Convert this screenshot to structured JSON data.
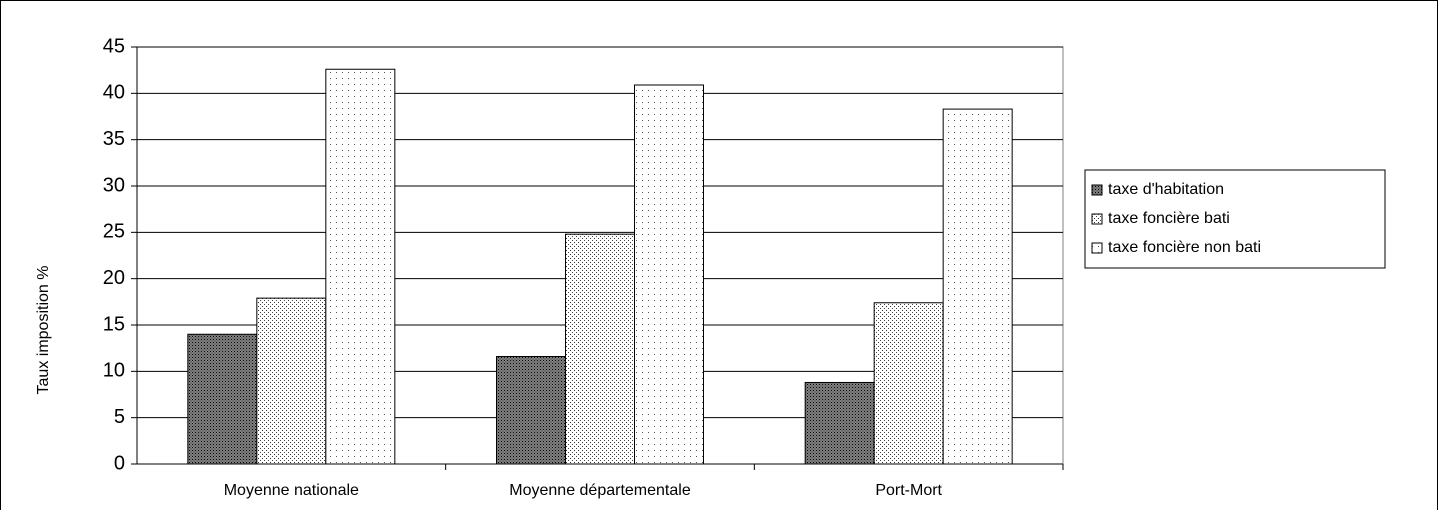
{
  "chart_data": {
    "type": "bar",
    "y_axis_label": "Taux imposition %",
    "categories": [
      "Moyenne nationale",
      "Moyenne départementale",
      "Port-Mort"
    ],
    "series": [
      {
        "name": "taxe d'habitation",
        "color": "#808080",
        "values": [
          14.0,
          11.6,
          8.8
        ]
      },
      {
        "name": "taxe foncière bati",
        "color": "#a8a8a8",
        "values": [
          17.9,
          24.8,
          17.4
        ]
      },
      {
        "name": "taxe foncière  non bati",
        "color": "#d0d0d0",
        "values": [
          42.6,
          40.9,
          38.3
        ]
      }
    ],
    "ylim": [
      0,
      45
    ],
    "yticks": [
      0,
      5,
      10,
      15,
      20,
      25,
      30,
      35,
      40,
      45
    ],
    "grid": true,
    "legend": "right"
  }
}
